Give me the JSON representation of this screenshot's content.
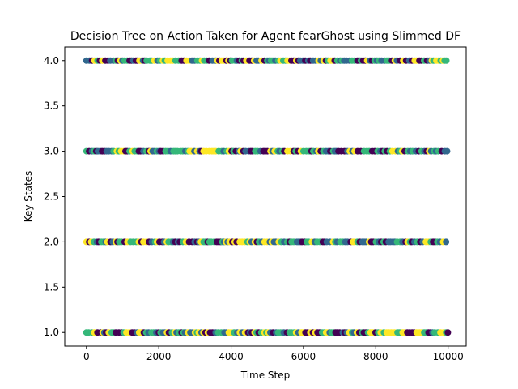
{
  "chart_data": {
    "type": "scatter",
    "title": "Decision Tree on Action Taken for Agent fearGhost using Slimmed DF",
    "xlabel": "Time Step",
    "ylabel": "Key States",
    "xlim": [
      -600,
      10500
    ],
    "ylim": [
      0.85,
      4.15
    ],
    "x_ticks": [
      0,
      2000,
      4000,
      6000,
      8000,
      10000
    ],
    "x_tick_labels": [
      "0",
      "2000",
      "4000",
      "6000",
      "8000",
      "10000"
    ],
    "y_ticks": [
      1.0,
      1.5,
      2.0,
      2.5,
      3.0,
      3.5,
      4.0
    ],
    "y_tick_labels": [
      "1.0",
      "1.5",
      "2.0",
      "2.5",
      "3.0",
      "3.5",
      "4.0"
    ],
    "grid": false,
    "legend": "none",
    "point_colors": [
      "#440154",
      "#31688e",
      "#35b779",
      "#fde725"
    ],
    "y_levels": [
      1.0,
      2.0,
      3.0,
      4.0
    ],
    "x_range_of_points": [
      0,
      10000
    ]
  }
}
